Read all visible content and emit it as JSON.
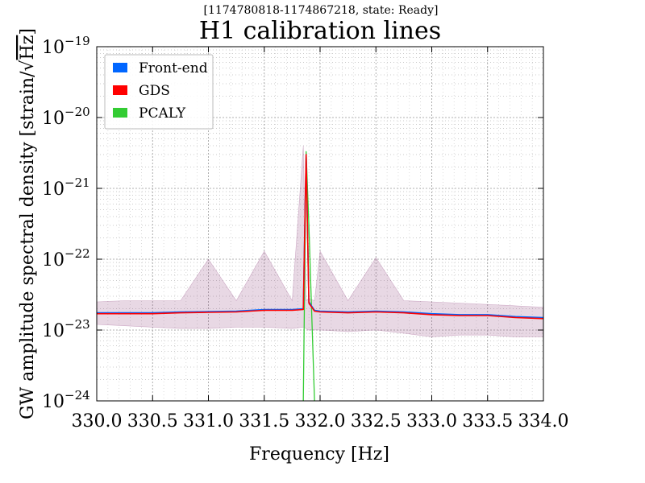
{
  "chart_data": {
    "type": "line",
    "subtitle": "[1174780818-1174867218, state: Ready]",
    "title": "H1 calibration lines",
    "xlabel": "Frequency [Hz]",
    "ylabel_prefix": "GW amplitude spectral density [strain/",
    "ylabel_radicand": "Hz",
    "ylabel_suffix": "]",
    "xscale": "linear",
    "yscale": "log",
    "xlim": [
      330.0,
      334.0
    ],
    "ylim": [
      1e-24,
      1e-19
    ],
    "grid": true,
    "legend_position": "top-left",
    "x_tick_labels": [
      "330.0",
      "330.5",
      "331.0",
      "331.5",
      "332.0",
      "332.5",
      "333.0",
      "333.5",
      "334.0"
    ],
    "y_tick_labels": [
      {
        "base": "10",
        "exp": "−24"
      },
      {
        "base": "10",
        "exp": "−23"
      },
      {
        "base": "10",
        "exp": "−22"
      },
      {
        "base": "10",
        "exp": "−21"
      },
      {
        "base": "10",
        "exp": "−20"
      },
      {
        "base": "10",
        "exp": "−19"
      }
    ],
    "x": [
      330.0,
      330.25,
      330.5,
      330.75,
      331.0,
      331.25,
      331.5,
      331.75,
      331.85,
      331.875,
      331.9,
      331.95,
      332.0,
      332.25,
      332.5,
      332.75,
      333.0,
      333.25,
      333.5,
      333.75,
      334.0
    ],
    "series": [
      {
        "name": "Front-end",
        "color": "#0066ff",
        "values": [
          1.75e-23,
          1.75e-23,
          1.75e-23,
          1.8e-23,
          1.82e-23,
          1.85e-23,
          1.95e-23,
          1.95e-23,
          2e-23,
          3e-21,
          2.5e-23,
          1.9e-23,
          1.85e-23,
          1.8e-23,
          1.85e-23,
          1.8e-23,
          1.7e-23,
          1.65e-23,
          1.65e-23,
          1.55e-23,
          1.5e-23
        ]
      },
      {
        "name": "GDS",
        "color": "#ff0000",
        "values": [
          1.7e-23,
          1.7e-23,
          1.7e-23,
          1.75e-23,
          1.78e-23,
          1.8e-23,
          1.9e-23,
          1.9e-23,
          1.95e-23,
          3e-21,
          2.4e-23,
          1.85e-23,
          1.8e-23,
          1.75e-23,
          1.8e-23,
          1.75e-23,
          1.65e-23,
          1.6e-23,
          1.6e-23,
          1.5e-23,
          1.45e-23
        ]
      },
      {
        "name": "PCALY",
        "color": "#33cc33",
        "values": [
          null,
          null,
          null,
          null,
          null,
          null,
          null,
          null,
          1e-24,
          3.3e-21,
          3e-22,
          1e-24,
          null,
          null,
          null,
          null,
          null,
          null,
          null,
          null,
          null
        ]
      }
    ],
    "band": {
      "color": "#8b3a7a",
      "upper": [
        2.5e-23,
        2.6e-23,
        2.6e-23,
        2.6e-23,
        1e-22,
        2.6e-23,
        1.3e-22,
        2.6e-23,
        4e-21,
        2.6e-23,
        2.8e-23,
        2.6e-23,
        1.3e-22,
        2.6e-23,
        1.05e-22,
        2.6e-23,
        2.5e-23,
        2.4e-23,
        2.3e-23,
        2.2e-23,
        2.1e-23
      ],
      "lower": [
        1.2e-23,
        1.15e-23,
        1.1e-23,
        1.05e-23,
        1.05e-23,
        1.1e-23,
        1.1e-23,
        1.05e-23,
        1.1e-23,
        1.05e-23,
        1e-23,
        1e-23,
        1e-23,
        9.5e-24,
        1e-23,
        9e-24,
        8e-24,
        8.5e-24,
        8.5e-24,
        8e-24,
        8e-24
      ]
    }
  }
}
